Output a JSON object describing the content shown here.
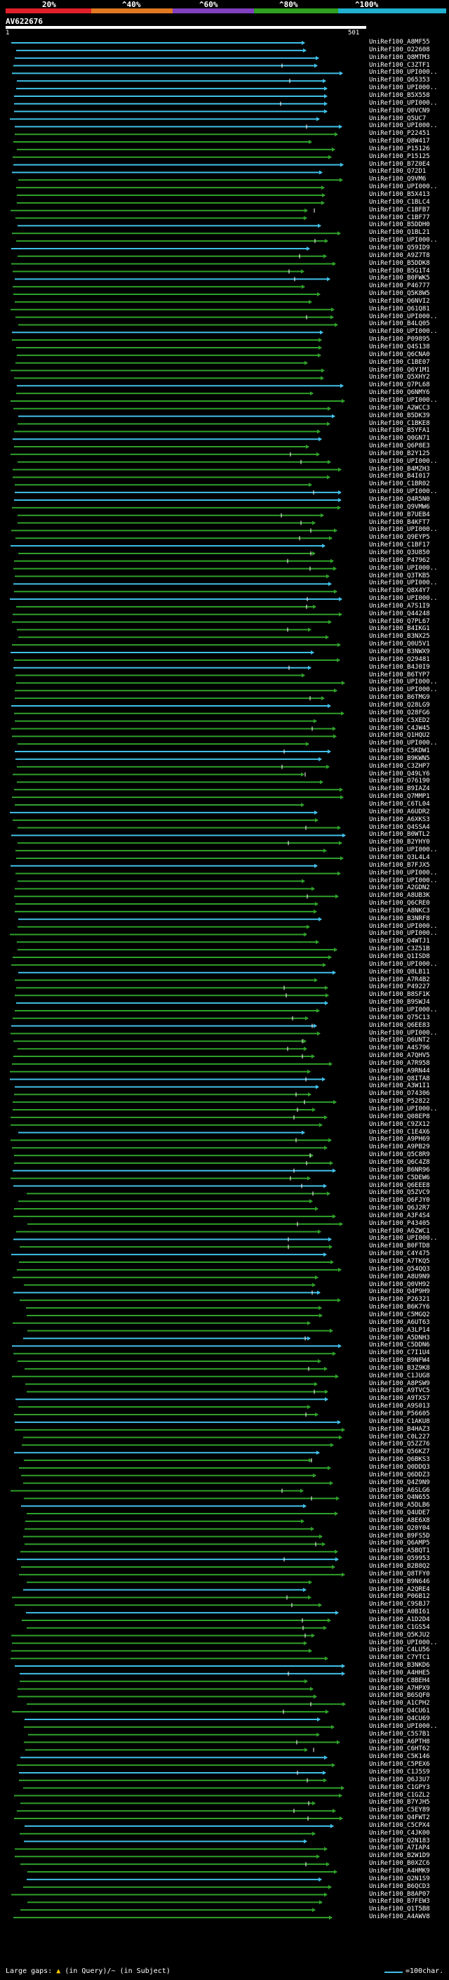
{
  "scale": {
    "labels": [
      "20%",
      "^40%",
      "^60%",
      "^80%",
      "^100%"
    ],
    "segment_colors": [
      "#e0202a",
      "#e07820",
      "#8040c0",
      "#30a020",
      "#20b0d0"
    ]
  },
  "query": {
    "title": "AV622676",
    "start": "1",
    "end": "501"
  },
  "colors": {
    "green": "#2fa02a",
    "cyan": "#40c0e8",
    "gap": "#ffcc00"
  },
  "hits": [
    "UniRef100_A8MF55",
    "UniRef100_O22608",
    "UniRef100_Q8MTM3",
    "UniRef100_C3ZTF1",
    "UniRef100_UPI000..",
    "UniRef100_Q65353",
    "UniRef100_UPI000..",
    "UniRef100_B5X558",
    "UniRef100_UPI000..",
    "UniRef100_Q0VCN9",
    "UniRef100_Q5UC7",
    "UniRef100_UPI000..",
    "UniRef100_P22451",
    "UniRef100_Q8W417",
    "UniRef100_P15126",
    "UniRef100_P15125",
    "UniRef100_B7Z0E4",
    "UniRef100_Q72D1",
    "UniRef100_Q9VM6",
    "UniRef100_UPI000..",
    "UniRef100_B5X413",
    "UniRef100_C1BLC4",
    "UniRef100_C1BFB7",
    "UniRef100_C1BF77",
    "UniRef100_B5DDH0",
    "UniRef100_Q1BL21",
    "UniRef100_UPI000..",
    "UniRef100_Q59ID9",
    "UniRef100_A9Z7T8",
    "UniRef100_B5DDK8",
    "UniRef100_B5G1T4",
    "UniRef100_B0FWK5",
    "UniRef100_P46777",
    "UniRef100_Q5K8W5",
    "UniRef100_Q6NVI2",
    "UniRef100_Q61Q81",
    "UniRef100_UPI000..",
    "UniRef100_B4LQ05",
    "UniRef100_UPI000..",
    "UniRef100_P09895",
    "UniRef100_Q4S138",
    "UniRef100_Q6CNA0",
    "UniRef100_C1BE07",
    "UniRef100_Q6Y1M1",
    "UniRef100_Q5XHY2",
    "UniRef100_Q7PL68",
    "UniRef100_Q6NMY6",
    "UniRef100_UPI000..",
    "UniRef100_A2WCC3",
    "UniRef100_B5DK39",
    "UniRef100_C1BKE8",
    "UniRef100_B5YFA1",
    "UniRef100_Q0GN71",
    "UniRef100_Q6P8E3",
    "UniRef100_B2Y125",
    "UniRef100_UPI000..",
    "UniRef100_B4MZH3",
    "UniRef100_B4I017",
    "UniRef100_C1BR02",
    "UniRef100_UPI000..",
    "UniRef100_Q4R5N0",
    "UniRef100_Q9VMW6",
    "UniRef100_B7UEB4",
    "UniRef100_B4KFT7",
    "UniRef100_UPI000..",
    "UniRef100_Q9EYP5",
    "UniRef100_C1BF17",
    "UniRef100_Q3U850",
    "UniRef100_P47962",
    "UniRef100_UPI000..",
    "UniRef100_Q3TKB5",
    "UniRef100_UPI000..",
    "UniRef100_Q8X4Y7",
    "UniRef100_UPI000..",
    "UniRef100_A7S1I9",
    "UniRef100_Q44248",
    "UniRef100_Q7PL67",
    "UniRef100_B4IKG1",
    "UniRef100_B3NX25",
    "UniRef100_Q0U5V1",
    "UniRef100_B3NWX9",
    "UniRef100_Q29481",
    "UniRef100_B4J0I9",
    "UniRef100_B6TYP7",
    "UniRef100_UPI000..",
    "UniRef100_UPI000..",
    "UniRef100_B6TMG9",
    "UniRef100_Q28LG9",
    "UniRef100_Q28FG6",
    "UniRef100_C5XED2",
    "UniRef100_C4JW45",
    "UniRef100_Q1HQU2",
    "UniRef100_UPI000..",
    "UniRef100_C5KDW1",
    "UniRef100_B9KWN5",
    "UniRef100_C3ZHP7",
    "UniRef100_Q49LY6",
    "UniRef100_O76190",
    "UniRef100_B9IAZ4",
    "UniRef100_Q7MMP1",
    "UniRef100_C6TL04",
    "UniRef100_A6UDR2",
    "UniRef100_A6XKS3",
    "UniRef100_Q4SSA4",
    "UniRef100_B0WTL2",
    "UniRef100_B2YHY0",
    "UniRef100_UPI000..",
    "UniRef100_Q3L4L4",
    "UniRef100_B7FJX5",
    "UniRef100_UPI000..",
    "UniRef100_UPI000..",
    "UniRef100_A2GDN2",
    "UniRef100_A8UB3K",
    "UniRef100_Q6CRE0",
    "UniRef100_A8NKC3",
    "UniRef100_B3NRF8",
    "UniRef100_UPI000..",
    "UniRef100_UPI000..",
    "UniRef100_Q4WTJ1",
    "UniRef100_C3Z51B",
    "UniRef100_Q1ISD8",
    "UniRef100_UPI000..",
    "UniRef100_Q8LB11",
    "UniRef100_A7R4B2",
    "UniRef100_P49227",
    "UniRef100_B8SF1K",
    "UniRef100_B9SWJ4",
    "UniRef100_UPI000..",
    "UniRef100_Q75C13",
    "UniRef100_Q6EE83",
    "UniRef100_UPI000..",
    "UniRef100_Q6UNT2",
    "UniRef100_A4S796",
    "UniRef100_A7QHV5",
    "UniRef100_A7R958",
    "UniRef100_A9RN44",
    "UniRef100_Q8ITA8",
    "UniRef100_A3W1I1",
    "UniRef100_O74306",
    "UniRef100_P52822",
    "UniRef100_UPI000..",
    "UniRef100_Q08EP8",
    "UniRef100_C9ZX12",
    "UniRef100_C1E4X6",
    "UniRef100_A9PH69",
    "UniRef100_A9PB29",
    "UniRef100_Q5C8R9",
    "UniRef100_Q6C4Z8",
    "UniRef100_B6NR96",
    "UniRef100_C5DEW6",
    "UniRef100_Q6EEE8",
    "UniRef100_Q5ZVC9",
    "UniRef100_Q6FJY0",
    "UniRef100_Q6J2R7",
    "UniRef100_A3F4S4",
    "UniRef100_P43405",
    "UniRef100_A6ZWC1",
    "UniRef100_UPI000..",
    "UniRef100_B0FTD8",
    "UniRef100_C4Y475",
    "UniRef100_A7TKQ5",
    "UniRef100_Q54QQ3",
    "UniRef100_A8U9N9",
    "UniRef100_Q0VH92",
    "UniRef100_Q4P9H9",
    "UniRef100_P26321",
    "UniRef100_B6K7Y6",
    "UniRef100_C5MGQ2",
    "UniRef100_A6UT63",
    "UniRef100_A3LP14",
    "UniRef100_A5DNH3",
    "UniRef100_C5DDN6",
    "UniRef100_C7I1U4",
    "UniRef100_B9NFW4",
    "UniRef100_B3Z9K8",
    "UniRef100_C1JUG8",
    "UniRef100_A8PSW9",
    "UniRef100_A9TVC5",
    "UniRef100_A9TXS7",
    "UniRef100_A9S013",
    "UniRef100_P56605",
    "UniRef100_C1AKU8",
    "UniRef100_B4HAZ3",
    "UniRef100_C0L227",
    "UniRef100_Q5ZZ76",
    "UniRef100_Q56KZ7",
    "UniRef100_Q6BKS3",
    "UniRef100_Q0DDQ3",
    "UniRef100_Q6DDZ3",
    "UniRef100_Q4Z9N9",
    "UniRef100_A6SLG6",
    "UniRef100_Q4N655",
    "UniRef100_A5DLB6",
    "UniRef100_Q4UDE7",
    "UniRef100_A8E6X8",
    "UniRef100_Q20Y04",
    "UniRef100_B9FS5D",
    "UniRef100_Q6AMP5",
    "UniRef100_A5BQT1",
    "UniRef100_Q59953",
    "UniRef100_B2B8Q2",
    "UniRef100_Q8TFY0",
    "UniRef100_B9N646",
    "UniRef100_A2QRE4",
    "UniRef100_P06B12",
    "UniRef100_C9SBJ7",
    "UniRef100_A0BI61",
    "UniRef100_A1D2D4",
    "UniRef100_C1GS54",
    "UniRef100_Q5KJU2",
    "UniRef100_UPI000..",
    "UniRef100_C4LU56",
    "UniRef100_C7YTC1",
    "UniRef100_B3NKD6",
    "UniRef100_A4HHE5",
    "UniRef100_C8BEH4",
    "UniRef100_A7HPX9",
    "UniRef100_B6SQF0",
    "UniRef100_A1CPH2",
    "UniRef100_Q4CU61",
    "UniRef100_Q4CU69",
    "UniRef100_UPI000..",
    "UniRef100_C5S7B1",
    "UniRef100_A6PTH8",
    "UniRef100_C6HT62",
    "UniRef100_C5K146",
    "UniRef100_C5PEX6",
    "UniRef100_C1J5S9",
    "UniRef100_Q6J3U7",
    "UniRef100_C1GPY3",
    "UniRef100_C1GZL2",
    "UniRef100_B7YJH5",
    "UniRef100_C5EY89",
    "UniRef100_Q4FWT2",
    "UniRef100_C5CPX4",
    "UniRef100_C4JK00",
    "UniRef100_Q2N183",
    "UniRef100_A7IAP4",
    "UniRef100_B2W1D9",
    "UniRef100_B0XZC6",
    "UniRef100_A4HMK9",
    "UniRef100_Q2N1S9",
    "UniRef100_B6QCD3",
    "UniRef100_B8AP07",
    "UniRef100_B7FEW3",
    "UniRef100_Q1T5B8",
    "UniRef100_A4AWV8"
  ],
  "footer": {
    "prefix": "Large gaps:",
    "gap_mark": "▲",
    "suffix": "(in Query)/~ (in Subject)",
    "legend": "=100char."
  }
}
